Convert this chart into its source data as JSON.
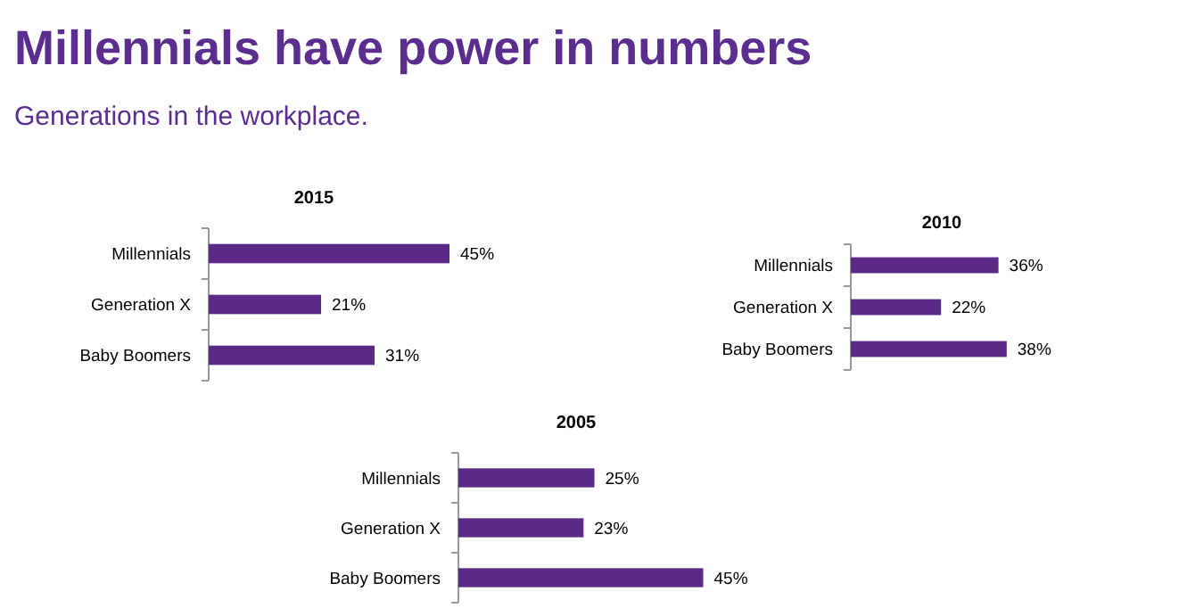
{
  "chart_data": [
    {
      "type": "other",
      "title": "Millennials have power in numbers",
      "subtitle": "Generations in the workplace."
    },
    {
      "type": "bar",
      "orientation": "horizontal",
      "title": "2015",
      "categories": [
        "Millennials",
        "Generation X",
        "Baby Boomers"
      ],
      "values": [
        45,
        21,
        31
      ],
      "value_labels": [
        "45%",
        "21%",
        "31%"
      ],
      "color": "#5b2a86"
    },
    {
      "type": "bar",
      "orientation": "horizontal",
      "title": "2010",
      "categories": [
        "Millennials",
        "Generation X",
        "Baby Boomers"
      ],
      "values": [
        36,
        22,
        38
      ],
      "value_labels": [
        "36%",
        "22%",
        "38%"
      ],
      "color": "#5b2a86"
    },
    {
      "type": "bar",
      "orientation": "horizontal",
      "title": "2005",
      "categories": [
        "Millennials",
        "Generation X",
        "Baby Boomers"
      ],
      "values": [
        25,
        23,
        45
      ],
      "value_labels": [
        "25%",
        "23%",
        "45%"
      ],
      "color": "#5b2a86"
    }
  ]
}
